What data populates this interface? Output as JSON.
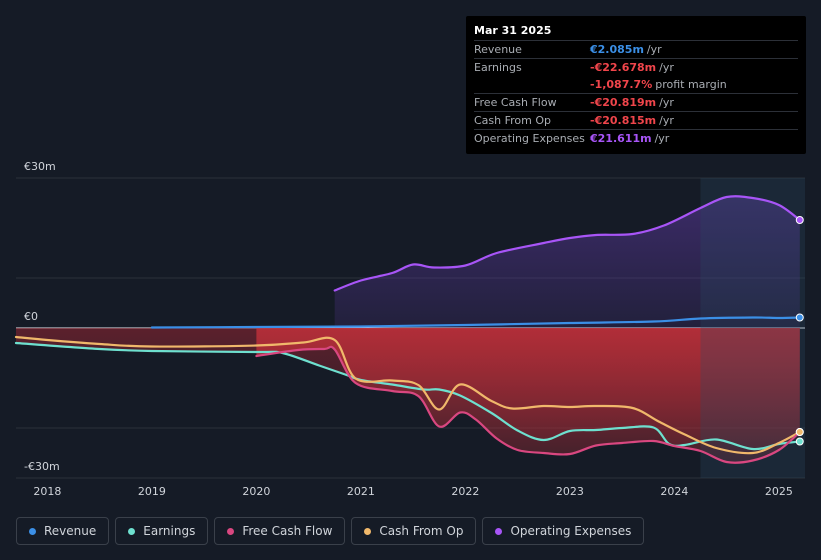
{
  "tooltip": {
    "date": "Mar 31 2025",
    "rows": [
      {
        "label": "Revenue",
        "value": "€2.085m",
        "unit": "/yr",
        "color": "#3b8fe6"
      },
      {
        "label": "Earnings",
        "value": "-€22.678m",
        "unit": "/yr",
        "color": "#f0454b"
      },
      {
        "label": "",
        "value": "-1,087.7%",
        "unit": "profit margin",
        "color": "#f0454b"
      },
      {
        "label": "Free Cash Flow",
        "value": "-€20.819m",
        "unit": "/yr",
        "color": "#f0454b"
      },
      {
        "label": "Cash From Op",
        "value": "-€20.815m",
        "unit": "/yr",
        "color": "#f0454b"
      },
      {
        "label": "Operating Expenses",
        "value": "€21.611m",
        "unit": "/yr",
        "color": "#a855f7"
      }
    ]
  },
  "legend": [
    {
      "label": "Revenue",
      "color": "#3b8fe6"
    },
    {
      "label": "Earnings",
      "color": "#6ee0cf"
    },
    {
      "label": "Free Cash Flow",
      "color": "#d94780"
    },
    {
      "label": "Cash From Op",
      "color": "#f0b86b"
    },
    {
      "label": "Operating Expenses",
      "color": "#a855f7"
    }
  ],
  "chart_data": {
    "type": "line",
    "title": "",
    "xlabel": "",
    "ylabel": "",
    "y_tick_labels": [
      "€30m",
      "€0",
      "-€30m"
    ],
    "ylim": [
      -30,
      30
    ],
    "xlim": [
      2017.7,
      2025.25
    ],
    "x_ticks": [
      2018,
      2019,
      2020,
      2021,
      2022,
      2023,
      2024,
      2025
    ],
    "series": [
      {
        "name": "Revenue",
        "color": "#3b8fe6",
        "points": [
          [
            2019.0,
            0.1
          ],
          [
            2020.0,
            0.2
          ],
          [
            2021.0,
            0.3
          ],
          [
            2022.0,
            0.6
          ],
          [
            2023.0,
            1.0
          ],
          [
            2023.8,
            1.3
          ],
          [
            2024.25,
            1.9
          ],
          [
            2024.75,
            2.1
          ],
          [
            2025.0,
            2.0
          ],
          [
            2025.2,
            2.1
          ]
        ]
      },
      {
        "name": "Earnings",
        "color": "#6ee0cf",
        "points": [
          [
            2017.7,
            -3.0
          ],
          [
            2018.5,
            -4.2
          ],
          [
            2019.0,
            -4.6
          ],
          [
            2020.0,
            -4.8
          ],
          [
            2020.25,
            -5.0
          ],
          [
            2020.6,
            -7.5
          ],
          [
            2020.85,
            -9.3
          ],
          [
            2021.0,
            -10.4
          ],
          [
            2021.3,
            -11.3
          ],
          [
            2021.6,
            -12.3
          ],
          [
            2021.75,
            -12.3
          ],
          [
            2021.95,
            -13.5
          ],
          [
            2022.25,
            -17.0
          ],
          [
            2022.5,
            -20.5
          ],
          [
            2022.75,
            -22.4
          ],
          [
            2023.0,
            -20.6
          ],
          [
            2023.25,
            -20.4
          ],
          [
            2023.5,
            -20.0
          ],
          [
            2023.8,
            -19.9
          ],
          [
            2023.95,
            -23.2
          ],
          [
            2024.1,
            -23.4
          ],
          [
            2024.4,
            -22.3
          ],
          [
            2024.75,
            -24.2
          ],
          [
            2025.0,
            -23.2
          ],
          [
            2025.2,
            -22.7
          ]
        ]
      },
      {
        "name": "Free Cash Flow",
        "color": "#d94780",
        "points": [
          [
            2020.0,
            -5.6
          ],
          [
            2020.4,
            -4.4
          ],
          [
            2020.65,
            -4.2
          ],
          [
            2020.75,
            -4.3
          ],
          [
            2020.95,
            -11.0
          ],
          [
            2021.3,
            -12.6
          ],
          [
            2021.55,
            -13.6
          ],
          [
            2021.75,
            -19.7
          ],
          [
            2021.95,
            -16.9
          ],
          [
            2022.1,
            -18.3
          ],
          [
            2022.3,
            -22.1
          ],
          [
            2022.5,
            -24.4
          ],
          [
            2022.75,
            -25.0
          ],
          [
            2023.0,
            -25.2
          ],
          [
            2023.25,
            -23.5
          ],
          [
            2023.5,
            -23.0
          ],
          [
            2023.8,
            -22.6
          ],
          [
            2024.0,
            -23.6
          ],
          [
            2024.25,
            -24.6
          ],
          [
            2024.5,
            -26.8
          ],
          [
            2024.75,
            -26.5
          ],
          [
            2025.0,
            -24.4
          ],
          [
            2025.2,
            -20.8
          ]
        ]
      },
      {
        "name": "Cash From Op",
        "color": "#f0b86b",
        "points": [
          [
            2017.7,
            -1.8
          ],
          [
            2018.0,
            -2.4
          ],
          [
            2018.5,
            -3.2
          ],
          [
            2019.0,
            -3.7
          ],
          [
            2020.0,
            -3.5
          ],
          [
            2020.45,
            -2.9
          ],
          [
            2020.75,
            -2.4
          ],
          [
            2020.95,
            -10.1
          ],
          [
            2021.3,
            -10.5
          ],
          [
            2021.55,
            -11.4
          ],
          [
            2021.75,
            -16.3
          ],
          [
            2021.95,
            -11.3
          ],
          [
            2022.25,
            -14.6
          ],
          [
            2022.45,
            -16.1
          ],
          [
            2022.75,
            -15.6
          ],
          [
            2023.0,
            -15.8
          ],
          [
            2023.25,
            -15.6
          ],
          [
            2023.6,
            -16.0
          ],
          [
            2023.85,
            -18.7
          ],
          [
            2024.1,
            -21.3
          ],
          [
            2024.4,
            -24.0
          ],
          [
            2024.75,
            -25.0
          ],
          [
            2025.0,
            -23.0
          ],
          [
            2025.2,
            -20.8
          ]
        ]
      },
      {
        "name": "Operating Expenses",
        "color": "#a855f7",
        "points": [
          [
            2020.75,
            7.5
          ],
          [
            2021.0,
            9.5
          ],
          [
            2021.3,
            11.0
          ],
          [
            2021.5,
            12.7
          ],
          [
            2021.7,
            12.1
          ],
          [
            2022.0,
            12.5
          ],
          [
            2022.3,
            15.0
          ],
          [
            2022.75,
            17.0
          ],
          [
            2023.0,
            18.0
          ],
          [
            2023.25,
            18.6
          ],
          [
            2023.6,
            18.8
          ],
          [
            2023.9,
            20.5
          ],
          [
            2024.25,
            24.0
          ],
          [
            2024.5,
            26.2
          ],
          [
            2024.75,
            26.0
          ],
          [
            2025.0,
            24.6
          ],
          [
            2025.2,
            21.6
          ]
        ]
      }
    ]
  }
}
